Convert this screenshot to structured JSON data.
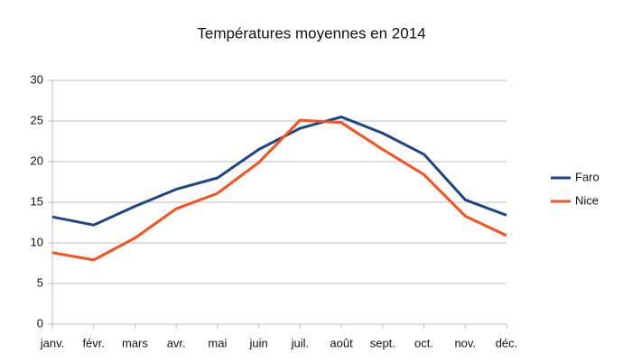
{
  "chart_data": {
    "type": "line",
    "title": "Températures moyennes en 2014",
    "categories": [
      "janv.",
      "févr.",
      "mars",
      "avr.",
      "mai",
      "juin",
      "juil.",
      "août",
      "sept.",
      "oct.",
      "nov.",
      "déc."
    ],
    "series": [
      {
        "name": "Faro",
        "color": "#1c4587",
        "values": [
          13.2,
          12.2,
          14.5,
          16.6,
          18.0,
          21.5,
          24.1,
          25.5,
          23.5,
          20.9,
          15.3,
          13.4
        ]
      },
      {
        "name": "Nice",
        "color": "#ff4e1a",
        "values": [
          8.8,
          7.9,
          10.6,
          14.2,
          16.1,
          19.9,
          25.1,
          24.8,
          21.5,
          18.4,
          13.3,
          10.9
        ]
      }
    ],
    "ylim": [
      0,
      30
    ],
    "yticks": [
      0,
      5,
      10,
      15,
      20,
      25,
      30
    ],
    "grid": true,
    "legend": "right"
  }
}
